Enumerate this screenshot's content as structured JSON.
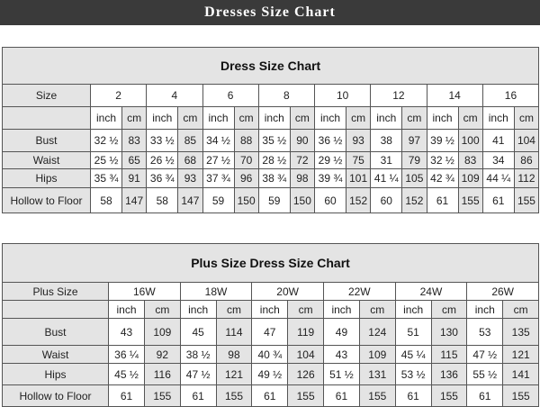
{
  "banner": {
    "title": "Dresses Size Chart"
  },
  "standard": {
    "title": "Dress Size Chart",
    "size_label": "Size",
    "units": [
      "inch",
      "cm"
    ],
    "sizes": [
      "2",
      "4",
      "6",
      "8",
      "10",
      "12",
      "14",
      "16"
    ],
    "rows": [
      {
        "label": "Bust",
        "values": [
          [
            "32 ½",
            "83"
          ],
          [
            "33 ½",
            "85"
          ],
          [
            "34 ½",
            "88"
          ],
          [
            "35 ½",
            "90"
          ],
          [
            "36 ½",
            "93"
          ],
          [
            "38",
            "97"
          ],
          [
            "39 ½",
            "100"
          ],
          [
            "41",
            "104"
          ]
        ]
      },
      {
        "label": "Waist",
        "values": [
          [
            "25 ½",
            "65"
          ],
          [
            "26 ½",
            "68"
          ],
          [
            "27 ½",
            "70"
          ],
          [
            "28 ½",
            "72"
          ],
          [
            "29 ½",
            "75"
          ],
          [
            "31",
            "79"
          ],
          [
            "32 ½",
            "83"
          ],
          [
            "34",
            "86"
          ]
        ]
      },
      {
        "label": "Hips",
        "values": [
          [
            "35 ¾",
            "91"
          ],
          [
            "36 ¾",
            "93"
          ],
          [
            "37 ¾",
            "96"
          ],
          [
            "38 ¾",
            "98"
          ],
          [
            "39 ¾",
            "101"
          ],
          [
            "41 ¼",
            "105"
          ],
          [
            "42 ¾",
            "109"
          ],
          [
            "44 ¼",
            "112"
          ]
        ]
      },
      {
        "label": "Hollow to Floor",
        "values": [
          [
            "58",
            "147"
          ],
          [
            "58",
            "147"
          ],
          [
            "59",
            "150"
          ],
          [
            "59",
            "150"
          ],
          [
            "60",
            "152"
          ],
          [
            "60",
            "152"
          ],
          [
            "61",
            "155"
          ],
          [
            "61",
            "155"
          ]
        ]
      }
    ]
  },
  "plus": {
    "title": "Plus Size Dress Size Chart",
    "size_label": "Plus Size",
    "units": [
      "inch",
      "cm"
    ],
    "sizes": [
      "16W",
      "18W",
      "20W",
      "22W",
      "24W",
      "26W"
    ],
    "rows": [
      {
        "label": "Bust",
        "values": [
          [
            "43",
            "109"
          ],
          [
            "45",
            "114"
          ],
          [
            "47",
            "119"
          ],
          [
            "49",
            "124"
          ],
          [
            "51",
            "130"
          ],
          [
            "53",
            "135"
          ]
        ]
      },
      {
        "label": "Waist",
        "values": [
          [
            "36 ¼",
            "92"
          ],
          [
            "38 ½",
            "98"
          ],
          [
            "40 ¾",
            "104"
          ],
          [
            "43",
            "109"
          ],
          [
            "45 ¼",
            "115"
          ],
          [
            "47 ½",
            "121"
          ]
        ]
      },
      {
        "label": "Hips",
        "values": [
          [
            "45 ½",
            "116"
          ],
          [
            "47 ½",
            "121"
          ],
          [
            "49 ½",
            "126"
          ],
          [
            "51 ½",
            "131"
          ],
          [
            "53 ½",
            "136"
          ],
          [
            "55 ½",
            "141"
          ]
        ]
      },
      {
        "label": "Hollow to Floor",
        "values": [
          [
            "61",
            "155"
          ],
          [
            "61",
            "155"
          ],
          [
            "61",
            "155"
          ],
          [
            "61",
            "155"
          ],
          [
            "61",
            "155"
          ],
          [
            "61",
            "155"
          ]
        ]
      }
    ]
  }
}
